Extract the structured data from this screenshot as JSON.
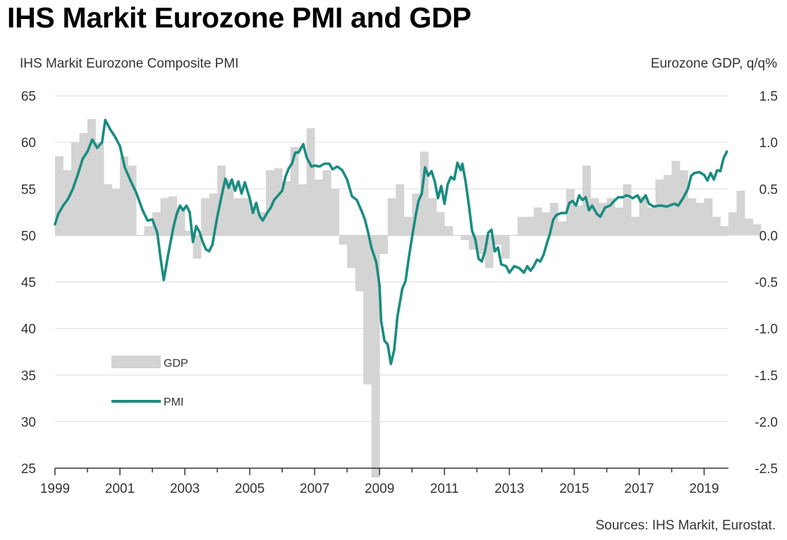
{
  "page": {
    "title": "IHS Markit Eurozone PMI and GDP",
    "source": "Sources: IHS Markit, Eurostat."
  },
  "chart_data": {
    "type": "bar+line",
    "title": "IHS Markit Eurozone PMI and GDP",
    "left_axis": {
      "label": "IHS Markit Eurozone Composite PMI",
      "range": [
        25,
        65
      ],
      "ticks": [
        65,
        60,
        55,
        50,
        45,
        40,
        35,
        30,
        25
      ]
    },
    "right_axis": {
      "label": "Eurozone GDP, q/q%",
      "range": [
        -2.5,
        1.5
      ],
      "ticks": [
        "1.5",
        "1.0",
        "0.5",
        "0.0",
        "-0.5",
        "-1.0",
        "-1.5",
        "-2.0",
        "-2.5"
      ]
    },
    "x_axis": {
      "range": [
        1999.0,
        2019.75
      ],
      "tick_labels": [
        "1999",
        "2001",
        "2003",
        "2005",
        "2007",
        "2009",
        "2011",
        "2013",
        "2015",
        "2017",
        "2019"
      ]
    },
    "grid": true,
    "legend": {
      "position": "left-lower",
      "entries": [
        "GDP",
        "PMI"
      ]
    },
    "colors": {
      "gdp": "#d4d4d4",
      "pmi": "#1a8c80"
    },
    "series": [
      {
        "name": "GDP",
        "type": "bar",
        "axis": "right",
        "frequency": "quarterly",
        "start": 1999.0,
        "values": [
          0.85,
          0.7,
          1.0,
          1.1,
          1.25,
          1.0,
          0.55,
          0.5,
          0.85,
          0.75,
          0.0,
          0.1,
          0.25,
          0.4,
          0.42,
          0.3,
          0.05,
          -0.25,
          0.4,
          0.45,
          0.75,
          0.6,
          0.4,
          0.4,
          0.3,
          0.25,
          0.7,
          0.72,
          0.58,
          0.95,
          0.55,
          1.15,
          0.6,
          0.7,
          0.5,
          -0.1,
          -0.35,
          -0.6,
          -1.6,
          -2.6,
          -0.2,
          0.4,
          0.55,
          0.2,
          0.45,
          0.9,
          0.4,
          0.25,
          0.1,
          0.0,
          -0.05,
          -0.15,
          -0.2,
          -0.35,
          -0.1,
          -0.25,
          0.0,
          0.2,
          0.2,
          0.3,
          0.25,
          0.35,
          0.15,
          0.5,
          0.32,
          0.75,
          0.4,
          0.35,
          0.4,
          0.3,
          0.55,
          0.2,
          0.42,
          0.3,
          0.6,
          0.65,
          0.8,
          0.7,
          0.4,
          0.35,
          0.4,
          0.2,
          0.1,
          0.25,
          0.48,
          0.18,
          0.12
        ]
      },
      {
        "name": "PMI",
        "type": "line",
        "axis": "left",
        "points": [
          [
            1999.0,
            51.2
          ],
          [
            1999.1,
            52.3
          ],
          [
            1999.25,
            53.2
          ],
          [
            1999.4,
            53.9
          ],
          [
            1999.55,
            55.0
          ],
          [
            1999.7,
            56.5
          ],
          [
            1999.85,
            58.2
          ],
          [
            2000.0,
            59.0
          ],
          [
            2000.15,
            60.3
          ],
          [
            2000.3,
            59.4
          ],
          [
            2000.45,
            60.0
          ],
          [
            2000.55,
            62.4
          ],
          [
            2000.7,
            61.4
          ],
          [
            2000.85,
            60.6
          ],
          [
            2001.0,
            59.6
          ],
          [
            2001.15,
            57.3
          ],
          [
            2001.35,
            55.7
          ],
          [
            2001.5,
            54.6
          ],
          [
            2001.7,
            52.7
          ],
          [
            2001.85,
            51.6
          ],
          [
            2002.0,
            51.7
          ],
          [
            2002.15,
            50.3
          ],
          [
            2002.25,
            47.6
          ],
          [
            2002.35,
            45.2
          ],
          [
            2002.5,
            48.2
          ],
          [
            2002.65,
            50.9
          ],
          [
            2002.75,
            52.3
          ],
          [
            2002.85,
            53.2
          ],
          [
            2002.95,
            52.7
          ],
          [
            2003.05,
            53.2
          ],
          [
            2003.15,
            52.5
          ],
          [
            2003.25,
            49.3
          ],
          [
            2003.35,
            51.0
          ],
          [
            2003.45,
            50.4
          ],
          [
            2003.55,
            49.3
          ],
          [
            2003.65,
            48.5
          ],
          [
            2003.75,
            48.3
          ],
          [
            2003.85,
            49.0
          ],
          [
            2004.0,
            52.0
          ],
          [
            2004.15,
            54.5
          ],
          [
            2004.25,
            56.1
          ],
          [
            2004.35,
            55.1
          ],
          [
            2004.45,
            56.0
          ],
          [
            2004.55,
            54.8
          ],
          [
            2004.65,
            55.8
          ],
          [
            2004.75,
            54.5
          ],
          [
            2004.85,
            55.7
          ],
          [
            2005.0,
            54.0
          ],
          [
            2005.1,
            52.4
          ],
          [
            2005.2,
            53.5
          ],
          [
            2005.3,
            52.1
          ],
          [
            2005.4,
            51.6
          ],
          [
            2005.55,
            52.5
          ],
          [
            2005.65,
            53.0
          ],
          [
            2005.75,
            53.8
          ],
          [
            2005.85,
            54.2
          ],
          [
            2006.0,
            54.8
          ],
          [
            2006.1,
            56.3
          ],
          [
            2006.2,
            57.2
          ],
          [
            2006.3,
            57.7
          ],
          [
            2006.4,
            58.9
          ],
          [
            2006.5,
            58.9
          ],
          [
            2006.65,
            59.8
          ],
          [
            2006.75,
            58.4
          ],
          [
            2006.9,
            57.4
          ],
          [
            2007.0,
            57.5
          ],
          [
            2007.15,
            57.4
          ],
          [
            2007.3,
            57.7
          ],
          [
            2007.45,
            57.7
          ],
          [
            2007.55,
            57.1
          ],
          [
            2007.7,
            57.4
          ],
          [
            2007.85,
            57.0
          ],
          [
            2008.0,
            56.0
          ],
          [
            2008.15,
            54.2
          ],
          [
            2008.3,
            53.8
          ],
          [
            2008.45,
            52.6
          ],
          [
            2008.55,
            51.7
          ],
          [
            2008.65,
            50.3
          ],
          [
            2008.75,
            48.7
          ],
          [
            2008.9,
            47.1
          ],
          [
            2009.0,
            44.6
          ],
          [
            2009.05,
            40.8
          ],
          [
            2009.15,
            38.7
          ],
          [
            2009.25,
            38.3
          ],
          [
            2009.35,
            36.2
          ],
          [
            2009.45,
            37.7
          ],
          [
            2009.55,
            41.3
          ],
          [
            2009.7,
            44.3
          ],
          [
            2009.8,
            45.1
          ],
          [
            2009.9,
            47.6
          ],
          [
            2010.0,
            49.8
          ],
          [
            2010.1,
            51.9
          ],
          [
            2010.2,
            53.7
          ],
          [
            2010.3,
            54.5
          ],
          [
            2010.4,
            57.3
          ],
          [
            2010.5,
            56.4
          ],
          [
            2010.6,
            56.9
          ],
          [
            2010.7,
            55.8
          ],
          [
            2010.8,
            54.0
          ],
          [
            2010.9,
            55.3
          ],
          [
            2011.0,
            53.4
          ],
          [
            2011.1,
            55.5
          ],
          [
            2011.2,
            56.3
          ],
          [
            2011.3,
            56.0
          ],
          [
            2011.4,
            57.8
          ],
          [
            2011.5,
            57.0
          ],
          [
            2011.55,
            57.7
          ],
          [
            2011.65,
            55.8
          ],
          [
            2011.75,
            53.3
          ],
          [
            2011.85,
            50.5
          ],
          [
            2011.95,
            49.6
          ],
          [
            2012.05,
            47.5
          ],
          [
            2012.15,
            47.2
          ],
          [
            2012.25,
            48.3
          ],
          [
            2012.35,
            50.3
          ],
          [
            2012.45,
            50.6
          ],
          [
            2012.55,
            48.3
          ],
          [
            2012.65,
            48.7
          ],
          [
            2012.75,
            46.9
          ],
          [
            2012.9,
            46.7
          ],
          [
            2013.0,
            46.0
          ],
          [
            2013.15,
            46.7
          ],
          [
            2013.3,
            46.5
          ],
          [
            2013.45,
            46.0
          ],
          [
            2013.55,
            46.7
          ],
          [
            2013.65,
            46.2
          ],
          [
            2013.75,
            46.7
          ],
          [
            2013.85,
            47.4
          ],
          [
            2013.95,
            47.2
          ],
          [
            2014.05,
            47.9
          ],
          [
            2014.15,
            49.1
          ],
          [
            2014.25,
            50.2
          ],
          [
            2014.35,
            51.7
          ],
          [
            2014.45,
            52.2
          ],
          [
            2014.6,
            52.4
          ],
          [
            2014.75,
            52.4
          ],
          [
            2014.85,
            53.5
          ],
          [
            2014.95,
            53.7
          ],
          [
            2015.05,
            53.2
          ],
          [
            2015.15,
            54.3
          ],
          [
            2015.25,
            53.8
          ],
          [
            2015.35,
            54.1
          ],
          [
            2015.45,
            52.7
          ],
          [
            2015.55,
            53.2
          ],
          [
            2015.7,
            52.3
          ],
          [
            2015.8,
            52.0
          ],
          [
            2015.95,
            53.0
          ],
          [
            2016.1,
            53.2
          ],
          [
            2016.2,
            53.6
          ],
          [
            2016.35,
            54.1
          ],
          [
            2016.5,
            54.1
          ],
          [
            2016.6,
            54.3
          ],
          [
            2016.7,
            54.2
          ],
          [
            2016.8,
            54.0
          ],
          [
            2016.95,
            54.3
          ],
          [
            2017.05,
            53.6
          ],
          [
            2017.2,
            54.3
          ],
          [
            2017.3,
            53.4
          ],
          [
            2017.45,
            53.1
          ],
          [
            2017.6,
            53.2
          ],
          [
            2017.7,
            53.2
          ],
          [
            2017.85,
            53.1
          ],
          [
            2018.0,
            53.3
          ],
          [
            2018.1,
            53.4
          ],
          [
            2018.2,
            53.2
          ],
          [
            2018.35,
            54.0
          ],
          [
            2018.5,
            55.0
          ],
          [
            2018.6,
            56.4
          ],
          [
            2018.7,
            56.7
          ],
          [
            2018.85,
            56.8
          ],
          [
            2019.0,
            56.5
          ],
          [
            2019.1,
            55.9
          ],
          [
            2019.2,
            56.7
          ],
          [
            2019.3,
            56.0
          ],
          [
            2019.4,
            57.0
          ],
          [
            2019.5,
            56.9
          ],
          [
            2019.6,
            58.3
          ],
          [
            2019.7,
            59.0
          ]
        ]
      }
    ]
  }
}
